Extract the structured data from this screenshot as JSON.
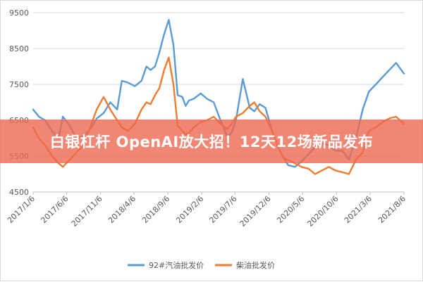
{
  "banner": {
    "headline": "白银杠杆 OpenAI放大招！12天12场新品发布"
  },
  "colors": {
    "gasoline": "#5b9bd5",
    "diesel": "#ed7d31",
    "banner": "#ec6850"
  },
  "chart_data": {
    "type": "line",
    "ylim": [
      4500,
      9500
    ],
    "yticks": [
      4500,
      5500,
      6500,
      7500,
      8500,
      9500
    ],
    "xlim": [
      "2017-01-06",
      "2021-08-06"
    ],
    "xtick_labels": [
      "2017/1/6",
      "2017/6/6",
      "2017/11/6",
      "2018/4/6",
      "2018/9/6",
      "2019/2/6",
      "2019/7/6",
      "2019/12/6",
      "2020/5/6",
      "2020/10/6",
      "2021/3/6",
      "2021/8/6"
    ],
    "xtick_dates": [
      "2017-01-06",
      "2017-06-06",
      "2017-11-06",
      "2018-04-06",
      "2018-09-06",
      "2019-02-06",
      "2019-07-06",
      "2019-12-06",
      "2020-05-06",
      "2020-10-06",
      "2021-03-06",
      "2021-08-06"
    ],
    "grid": true,
    "legend_position": "bottom",
    "series": [
      {
        "name": "92#汽油批发价",
        "color": "#5b9bd5",
        "x": [
          "2017-01-06",
          "2017-02-01",
          "2017-03-01",
          "2017-04-01",
          "2017-05-01",
          "2017-05-20",
          "2017-06-20",
          "2017-07-20",
          "2017-08-20",
          "2017-09-20",
          "2017-10-20",
          "2017-11-20",
          "2017-12-20",
          "2018-01-20",
          "2018-02-10",
          "2018-03-10",
          "2018-04-10",
          "2018-05-10",
          "2018-06-01",
          "2018-06-20",
          "2018-07-10",
          "2018-07-30",
          "2018-08-20",
          "2018-09-10",
          "2018-10-01",
          "2018-10-20",
          "2018-11-10",
          "2018-11-25",
          "2018-12-10",
          "2019-01-01",
          "2019-02-01",
          "2019-03-01",
          "2019-04-01",
          "2019-05-01",
          "2019-06-01",
          "2019-06-20",
          "2019-07-10",
          "2019-08-10",
          "2019-09-10",
          "2019-10-01",
          "2019-10-25",
          "2019-11-20",
          "2019-12-20",
          "2020-01-20",
          "2020-02-10",
          "2020-03-01",
          "2020-04-01",
          "2020-05-01",
          "2020-06-01",
          "2020-07-01",
          "2020-08-01",
          "2020-09-01",
          "2020-10-01",
          "2020-11-01",
          "2020-12-01",
          "2021-01-01",
          "2021-02-01",
          "2021-03-01",
          "2021-04-01",
          "2021-05-01",
          "2021-06-01",
          "2021-07-01",
          "2021-08-06"
        ],
        "values": [
          6800,
          6600,
          6500,
          6200,
          6000,
          6600,
          6350,
          6000,
          6050,
          6250,
          6550,
          6700,
          7000,
          6800,
          7600,
          7550,
          7450,
          7600,
          8000,
          7900,
          8000,
          8400,
          8900,
          9300,
          8600,
          7200,
          7150,
          6900,
          7050,
          7100,
          7250,
          7100,
          7000,
          6500,
          6050,
          6150,
          6500,
          7650,
          6850,
          6750,
          6950,
          6850,
          6200,
          5700,
          5450,
          5250,
          5200,
          5350,
          5550,
          5750,
          5850,
          5800,
          5650,
          5650,
          5400,
          6000,
          6800,
          7300,
          7500,
          7700,
          7900,
          8100,
          7800
        ]
      },
      {
        "name": "柴油批发价",
        "color": "#ed7d31",
        "x": [
          "2017-01-06",
          "2017-02-01",
          "2017-03-01",
          "2017-04-01",
          "2017-05-01",
          "2017-05-20",
          "2017-06-20",
          "2017-07-20",
          "2017-08-20",
          "2017-09-20",
          "2017-10-20",
          "2017-11-20",
          "2017-12-20",
          "2018-01-20",
          "2018-02-10",
          "2018-03-10",
          "2018-04-10",
          "2018-05-10",
          "2018-06-01",
          "2018-06-20",
          "2018-07-10",
          "2018-07-30",
          "2018-08-20",
          "2018-09-10",
          "2018-10-01",
          "2018-10-20",
          "2018-11-10",
          "2018-11-25",
          "2018-12-10",
          "2019-01-01",
          "2019-02-01",
          "2019-03-01",
          "2019-04-01",
          "2019-05-01",
          "2019-06-01",
          "2019-06-20",
          "2019-07-10",
          "2019-08-10",
          "2019-09-10",
          "2019-10-01",
          "2019-10-25",
          "2019-11-20",
          "2019-12-20",
          "2020-01-20",
          "2020-02-10",
          "2020-03-01",
          "2020-04-01",
          "2020-05-01",
          "2020-06-01",
          "2020-07-01",
          "2020-08-01",
          "2020-09-01",
          "2020-10-01",
          "2020-11-01",
          "2020-12-01",
          "2021-01-01",
          "2021-02-01",
          "2021-03-01",
          "2021-04-01",
          "2021-05-01",
          "2021-06-01",
          "2021-07-01",
          "2021-08-06"
        ],
        "values": [
          6300,
          6000,
          5800,
          5500,
          5300,
          5200,
          5400,
          5600,
          5800,
          6300,
          6800,
          7150,
          6800,
          6500,
          6300,
          6200,
          6400,
          6800,
          7000,
          6950,
          7200,
          7400,
          7900,
          8250,
          7500,
          6350,
          6200,
          6100,
          6150,
          6300,
          6450,
          6500,
          6600,
          6400,
          6250,
          6400,
          6600,
          6700,
          6900,
          7000,
          6750,
          6600,
          6200,
          5700,
          5450,
          5400,
          5300,
          5200,
          5150,
          5000,
          5100,
          5200,
          5100,
          5050,
          5000,
          5400,
          5600,
          6200,
          6300,
          6450,
          6550,
          6600,
          6400
        ]
      }
    ]
  }
}
